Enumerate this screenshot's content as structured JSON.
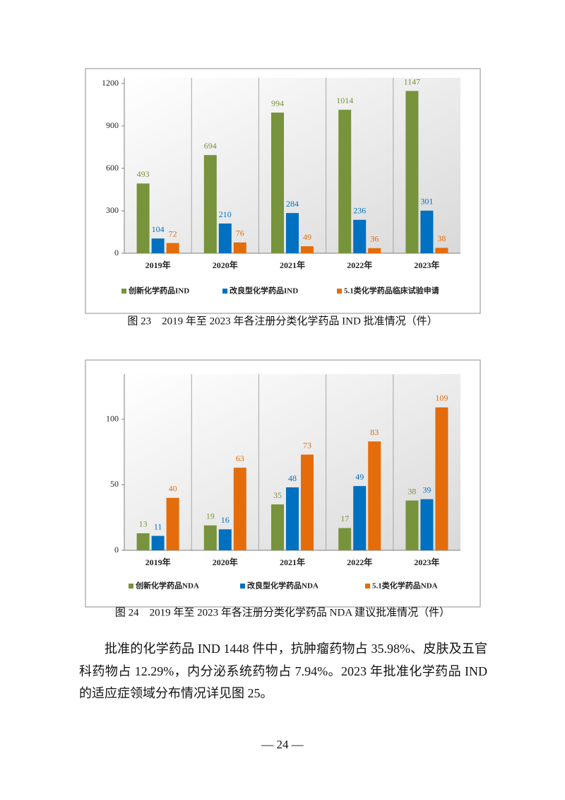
{
  "chart_data": [
    {
      "type": "bar",
      "title": "图 23　2019 年至 2023 年各注册分类化学药品 IND 批准情况（件）",
      "categories": [
        "2019年",
        "2020年",
        "2021年",
        "2022年",
        "2023年"
      ],
      "series": [
        {
          "name": "创新化学药品IND",
          "color": "#77933c",
          "values": [
            493,
            694,
            994,
            1014,
            1147
          ]
        },
        {
          "name": "改良型化学药品IND",
          "color": "#0070c0",
          "values": [
            104,
            210,
            284,
            236,
            301
          ]
        },
        {
          "name": "5.1类化学药品临床试验申请",
          "color": "#e46c0a",
          "values": [
            72,
            76,
            49,
            36,
            38
          ]
        }
      ],
      "ylim": [
        0,
        1200
      ],
      "yticks": [
        0,
        300,
        600,
        900,
        1200
      ]
    },
    {
      "type": "bar",
      "title": "图 24　2019 年至 2023 年各注册分类化学药品 NDA 建议批准情况（件）",
      "categories": [
        "2019年",
        "2020年",
        "2021年",
        "2022年",
        "2023年"
      ],
      "series": [
        {
          "name": "创新化学药品NDA",
          "color": "#77933c",
          "values": [
            13,
            19,
            35,
            17,
            38
          ]
        },
        {
          "name": "改良型化学药品NDA",
          "color": "#0070c0",
          "values": [
            11,
            16,
            48,
            49,
            39
          ]
        },
        {
          "name": "5.1类化学药品NDA",
          "color": "#e46c0a",
          "values": [
            40,
            63,
            73,
            83,
            109
          ]
        }
      ],
      "ylim": [
        0,
        130
      ],
      "yticks": [
        0,
        50,
        100
      ]
    }
  ],
  "paragraph": "批准的化学药品 IND 1448 件中，抗肿瘤药物占 35.98%、皮肤及五官科药物占 12.29%，内分泌系统药物占 7.94%。2023 年批准化学药品 IND 的适应症领域分布情况详见图 25。",
  "page_number": "— 24 —"
}
